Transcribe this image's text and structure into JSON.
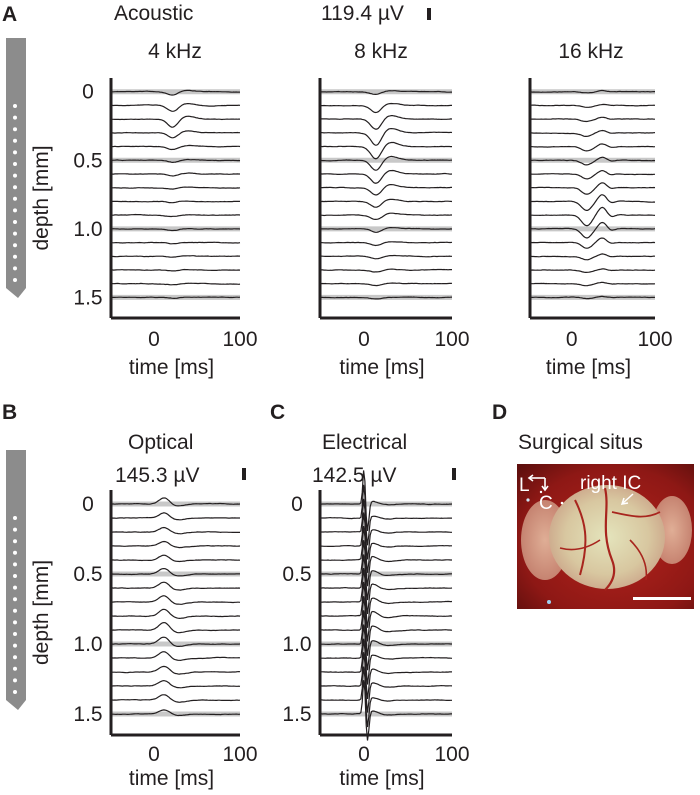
{
  "colors": {
    "ink": "#231f20",
    "zero_line": "#c8c8c8",
    "probe_fill": "#8c8c8c",
    "probe_contact": "#ffffff",
    "tissue_dark": "#6e1210",
    "tissue_red": "#b4231c",
    "tissue_pale": "#e7dcb4"
  },
  "panels": {
    "A": {
      "letter": "A",
      "modality": "Acoustic",
      "scale_label": "119.4 µV"
    },
    "B": {
      "letter": "B",
      "modality": "Optical",
      "scale_label": "145.3 µV"
    },
    "C": {
      "letter": "C",
      "modality": "Electrical",
      "scale_label": "142.5 µV"
    },
    "D": {
      "letter": "D",
      "title": "Surgical situs",
      "region_label": "right IC",
      "orientation_lateral": "L",
      "orientation_caudal": "C",
      "image_description_icons": [
        "orientation-arrows-icon",
        "scale-bar-icon",
        "pointer-arrow-icon"
      ]
    }
  },
  "chart_data": [
    {
      "id": "acoustic-4khz",
      "type": "line",
      "title": "4 kHz",
      "xlabel": "time [ms]",
      "ylabel": "depth [mm]",
      "xlim": [
        -50,
        100
      ],
      "xticks": [
        0,
        100
      ],
      "ylim": [
        -0.1,
        1.65
      ],
      "yticks": [
        0,
        0.5,
        1.0,
        1.5
      ],
      "ytick_labels": [
        "0",
        "0.5",
        "1.0",
        "1.5"
      ],
      "channel_depths_mm": [
        0,
        0.1,
        0.2,
        0.3,
        0.4,
        0.5,
        0.6,
        0.7,
        0.8,
        0.9,
        1.0,
        1.1,
        1.2,
        1.3,
        1.4,
        1.5
      ],
      "zero_lines_depth_mm": [
        0,
        0.5,
        1.0,
        1.5
      ],
      "response": {
        "peak_latency_ms": 22,
        "peak_amplitude_uv": [
          -40,
          -70,
          -95,
          -60,
          -35,
          -25,
          -20,
          -18,
          -16,
          -15,
          -14,
          -13,
          -12,
          -12,
          -11,
          -10
        ]
      }
    },
    {
      "id": "acoustic-8khz",
      "type": "line",
      "title": "8 kHz",
      "xlabel": "time [ms]",
      "ylabel": "",
      "xlim": [
        -50,
        100
      ],
      "xticks": [
        0,
        100
      ],
      "ylim": [
        -0.1,
        1.65
      ],
      "yticks": [
        0,
        0.5,
        1.0,
        1.5
      ],
      "ytick_labels": [],
      "channel_depths_mm": [
        0,
        0.1,
        0.2,
        0.3,
        0.4,
        0.5,
        0.6,
        0.7,
        0.8,
        0.9,
        1.0,
        1.1,
        1.2,
        1.3,
        1.4,
        1.5
      ],
      "zero_lines_depth_mm": [
        0,
        0.5,
        1.0,
        1.5
      ],
      "response": {
        "peak_latency_ms": 14,
        "peak_amplitude_uv": [
          -30,
          -80,
          -120,
          -150,
          -140,
          -120,
          -110,
          -90,
          -70,
          -55,
          -45,
          -35,
          -30,
          -25,
          -20,
          -18
        ]
      }
    },
    {
      "id": "acoustic-16khz",
      "type": "line",
      "title": "16 kHz",
      "xlabel": "time [ms]",
      "ylabel": "",
      "xlim": [
        -50,
        100
      ],
      "xticks": [
        0,
        100
      ],
      "ylim": [
        -0.1,
        1.65
      ],
      "yticks": [
        0,
        0.5,
        1.0,
        1.5
      ],
      "ytick_labels": [],
      "channel_depths_mm": [
        0,
        0.1,
        0.2,
        0.3,
        0.4,
        0.5,
        0.6,
        0.7,
        0.8,
        0.9,
        1.0,
        1.1,
        1.2,
        1.3,
        1.4,
        1.5
      ],
      "zero_lines_depth_mm": [
        0,
        0.5,
        1.0,
        1.5
      ],
      "response": {
        "peak_latency_ms": 18,
        "peak_amplitude_uv": [
          -15,
          -20,
          -30,
          -40,
          -50,
          -55,
          -60,
          -80,
          -110,
          -130,
          -110,
          -70,
          -40,
          -25,
          -20,
          -15
        ]
      }
    },
    {
      "id": "optical",
      "type": "line",
      "title": "",
      "xlabel": "time [ms]",
      "ylabel": "depth [mm]",
      "xlim": [
        -50,
        100
      ],
      "xticks": [
        0,
        100
      ],
      "ylim": [
        -0.1,
        1.65
      ],
      "yticks": [
        0,
        0.5,
        1.0,
        1.5
      ],
      "ytick_labels": [
        "0",
        "0.5",
        "1.0",
        "1.5"
      ],
      "channel_depths_mm": [
        0,
        0.1,
        0.2,
        0.3,
        0.4,
        0.5,
        0.6,
        0.7,
        0.8,
        0.9,
        1.0,
        1.1,
        1.2,
        1.3,
        1.4,
        1.5
      ],
      "zero_lines_depth_mm": [
        0,
        0.5,
        1.0,
        1.5
      ],
      "response": {
        "peak_latency_ms": 12,
        "peak_amplitude_uv": [
          70,
          60,
          55,
          55,
          60,
          65,
          70,
          75,
          80,
          85,
          80,
          75,
          70,
          65,
          60,
          50
        ]
      }
    },
    {
      "id": "electrical",
      "type": "line",
      "title": "",
      "xlabel": "time [ms]",
      "ylabel": "",
      "xlim": [
        -50,
        100
      ],
      "xticks": [
        0,
        100
      ],
      "ylim": [
        -0.1,
        1.65
      ],
      "yticks": [
        0,
        0.5,
        1.0,
        1.5
      ],
      "ytick_labels": [
        "0",
        "0.5",
        "1.0",
        "1.5"
      ],
      "channel_depths_mm": [
        0,
        0.1,
        0.2,
        0.3,
        0.4,
        0.5,
        0.6,
        0.7,
        0.8,
        0.9,
        1.0,
        1.1,
        1.2,
        1.3,
        1.4,
        1.5
      ],
      "zero_lines_depth_mm": [
        0,
        0.5,
        1.0,
        1.5
      ],
      "response": {
        "stimulus_artifact_ms": 2,
        "artifact_amplitude_uv": 400,
        "peak_latency_ms": 10,
        "peak_amplitude_uv": [
          30,
          25,
          30,
          35,
          40,
          40,
          45,
          45,
          50,
          50,
          45,
          40,
          40,
          35,
          30,
          30
        ]
      }
    }
  ]
}
